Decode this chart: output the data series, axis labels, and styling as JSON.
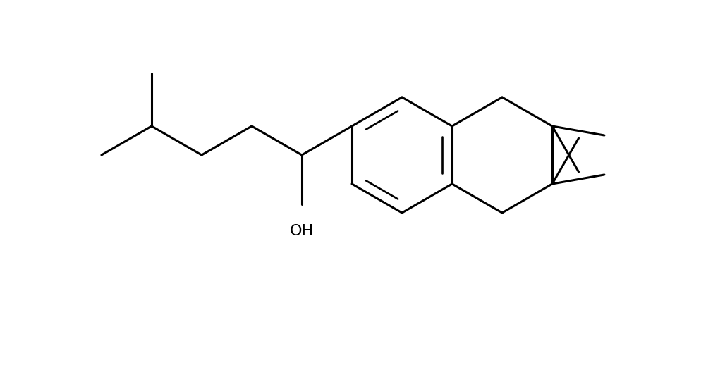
{
  "background_color": "#ffffff",
  "bond_color": "#000000",
  "bond_lw": 2.2,
  "inner_lw": 1.9,
  "figsize": [
    9.94,
    5.18
  ],
  "dpi": 100,
  "oh_text": "OH",
  "oh_fontsize": 16
}
